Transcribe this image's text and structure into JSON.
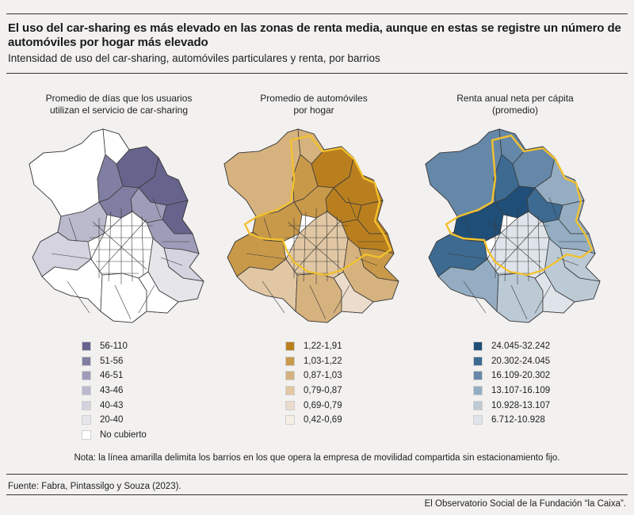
{
  "header": {
    "title": "El uso del car-sharing es más elevado en las zonas de renta media, aunque en estas se registre un número de automóviles por hogar más elevado",
    "subtitle": "Intensidad de uso del car-sharing, automóviles particulares y renta, por barrios"
  },
  "maps": [
    {
      "title_line1": "Promedio de días que los usuarios",
      "title_line2": "utilizan el servicio de car-sharing",
      "legend": [
        {
          "label": "56-110",
          "color": "#66648c"
        },
        {
          "label": "51-56",
          "color": "#807ea2"
        },
        {
          "label": "46-51",
          "color": "#9e9cb8"
        },
        {
          "label": "43-46",
          "color": "#bbbacd"
        },
        {
          "label": "40-43",
          "color": "#d4d3df"
        },
        {
          "label": "20-40",
          "color": "#e6e6ea"
        },
        {
          "label": "No cubierto",
          "color": "#ffffff"
        }
      ]
    },
    {
      "title_line1": "Promedio de automóviles",
      "title_line2": "por hogar",
      "legend": [
        {
          "label": "1,22-1,91",
          "color": "#b97f1f"
        },
        {
          "label": "1,03-1,22",
          "color": "#c9994a"
        },
        {
          "label": "0,87-1,03",
          "color": "#d6b27e"
        },
        {
          "label": "0,79-0,87",
          "color": "#e1c7a3"
        },
        {
          "label": "0,69-0,79",
          "color": "#ebdccb"
        },
        {
          "label": "0,42-0,69",
          "color": "#f6efe6"
        }
      ]
    },
    {
      "title_line1": "Renta anual neta per cápita",
      "title_line2": "(promedio)",
      "legend": [
        {
          "label": "24.045-32.242",
          "color": "#1f4f78"
        },
        {
          "label": "20.302-24.045",
          "color": "#3d6a91"
        },
        {
          "label": "16.109-20.302",
          "color": "#6588a8"
        },
        {
          "label": "13.107-16.109",
          "color": "#94adc2"
        },
        {
          "label": "10.928-13.107",
          "color": "#bccad6"
        },
        {
          "label": "6.712-10.928",
          "color": "#dfe4ea"
        }
      ]
    }
  ],
  "note": "Nota: la línea amarilla delimita los barrios en los que opera la empresa de movilidad compartida sin estacionamiento fijo.",
  "source": "Fuente: Fabra, Pintassilgo y Souza (2023).",
  "credit": "El Observatorio Social de la Fundación “la Caixa”.",
  "map_fills": [
    [
      "#ffffff",
      "#ffffff",
      "#807ea2",
      "#66648c",
      "#66648c",
      "#66648c",
      "#9e9cb8",
      "#807ea2",
      "#bbbacd",
      "#d4d3df",
      "#9e9cb8",
      "#d4d3df",
      "#e6e6ea",
      "#ffffff",
      "#ffffff",
      "#ffffff",
      "#ffffff"
    ],
    [
      "#d6b27e",
      "#d6b27e",
      "#c9994a",
      "#b97f1f",
      "#b97f1f",
      "#b97f1f",
      "#b97f1f",
      "#c9994a",
      "#c9994a",
      "#c9994a",
      "#b97f1f",
      "#c9994a",
      "#d6b27e",
      "#e1c7a3",
      "#d6b27e",
      "#ebdccb",
      "#e1c7a3"
    ],
    [
      "#6588a8",
      "#6588a8",
      "#3d6a91",
      "#6588a8",
      "#94adc2",
      "#94adc2",
      "#3d6a91",
      "#1f4f78",
      "#1f4f78",
      "#3d6a91",
      "#94adc2",
      "#bccad6",
      "#bccad6",
      "#94adc2",
      "#bccad6",
      "#dfe4ea",
      "#dfe4ea"
    ]
  ]
}
